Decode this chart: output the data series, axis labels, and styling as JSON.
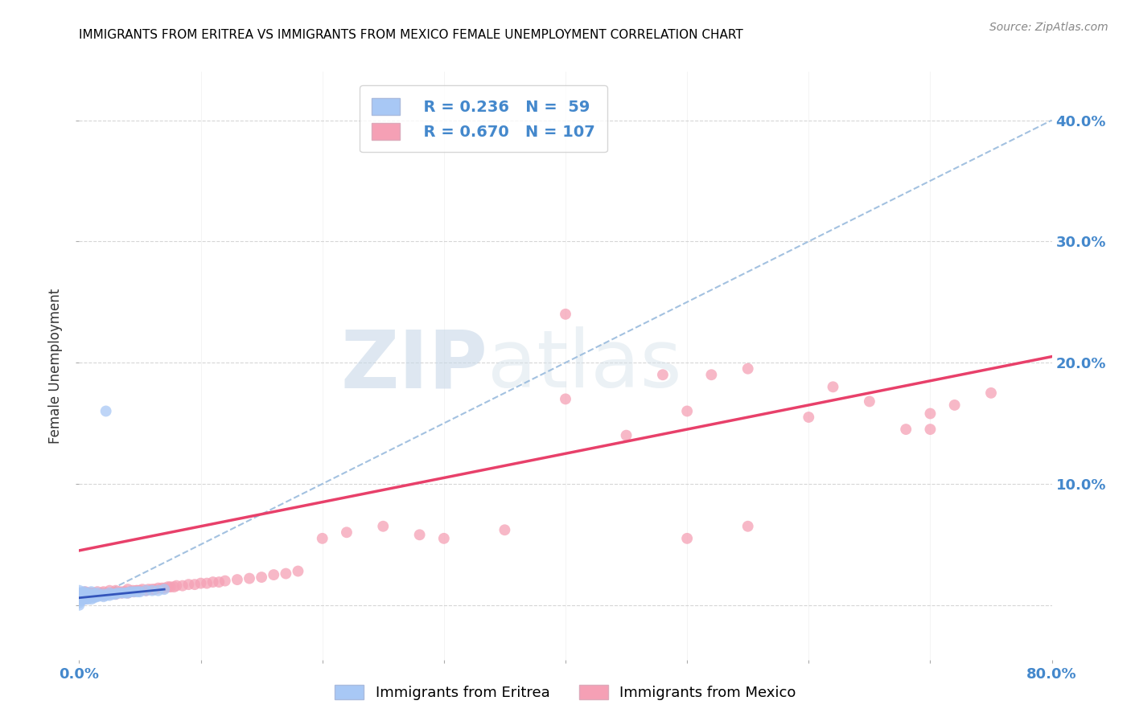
{
  "title": "IMMIGRANTS FROM ERITREA VS IMMIGRANTS FROM MEXICO FEMALE UNEMPLOYMENT CORRELATION CHART",
  "source": "Source: ZipAtlas.com",
  "ylabel": "Female Unemployment",
  "xlim": [
    0.0,
    0.8
  ],
  "ylim": [
    -0.045,
    0.44
  ],
  "watermark_zip": "ZIP",
  "watermark_atlas": "atlas",
  "legend_eritrea_R": "0.236",
  "legend_eritrea_N": "59",
  "legend_mexico_R": "0.670",
  "legend_mexico_N": "107",
  "eritrea_color": "#a8c8f5",
  "mexico_color": "#f5a0b5",
  "eritrea_line_color": "#3355bb",
  "mexico_line_color": "#e8406a",
  "dashed_line_color": "#99bbdd",
  "title_fontsize": 11,
  "axis_label_color": "#4488cc",
  "grid_color": "#cccccc",
  "eritrea_x": [
    0.0,
    0.0,
    0.0,
    0.0,
    0.0,
    0.0,
    0.0,
    0.0,
    0.001,
    0.001,
    0.001,
    0.002,
    0.002,
    0.003,
    0.003,
    0.003,
    0.004,
    0.004,
    0.004,
    0.005,
    0.005,
    0.005,
    0.006,
    0.007,
    0.007,
    0.008,
    0.008,
    0.009,
    0.01,
    0.01,
    0.01,
    0.011,
    0.012,
    0.013,
    0.013,
    0.015,
    0.015,
    0.016,
    0.018,
    0.02,
    0.02,
    0.022,
    0.025,
    0.025,
    0.028,
    0.03,
    0.032,
    0.035,
    0.038,
    0.04,
    0.042,
    0.045,
    0.048,
    0.05,
    0.055,
    0.06,
    0.065,
    0.07,
    0.022
  ],
  "eritrea_y": [
    0.0,
    0.002,
    0.004,
    0.005,
    0.006,
    0.008,
    0.01,
    0.012,
    0.005,
    0.007,
    0.01,
    0.004,
    0.006,
    0.005,
    0.007,
    0.01,
    0.005,
    0.007,
    0.011,
    0.005,
    0.007,
    0.01,
    0.006,
    0.005,
    0.008,
    0.006,
    0.009,
    0.007,
    0.005,
    0.008,
    0.011,
    0.007,
    0.006,
    0.007,
    0.009,
    0.007,
    0.01,
    0.008,
    0.008,
    0.007,
    0.009,
    0.008,
    0.008,
    0.01,
    0.009,
    0.009,
    0.01,
    0.01,
    0.01,
    0.01,
    0.011,
    0.011,
    0.011,
    0.011,
    0.012,
    0.012,
    0.012,
    0.013,
    0.16
  ],
  "mexico_x": [
    0.0,
    0.0,
    0.001,
    0.001,
    0.002,
    0.002,
    0.003,
    0.003,
    0.004,
    0.004,
    0.005,
    0.005,
    0.005,
    0.006,
    0.006,
    0.007,
    0.007,
    0.008,
    0.008,
    0.009,
    0.009,
    0.01,
    0.01,
    0.011,
    0.012,
    0.012,
    0.013,
    0.014,
    0.015,
    0.015,
    0.016,
    0.017,
    0.018,
    0.019,
    0.02,
    0.02,
    0.021,
    0.022,
    0.023,
    0.025,
    0.025,
    0.027,
    0.028,
    0.03,
    0.03,
    0.032,
    0.033,
    0.035,
    0.036,
    0.038,
    0.04,
    0.04,
    0.042,
    0.044,
    0.045,
    0.047,
    0.048,
    0.05,
    0.052,
    0.055,
    0.057,
    0.06,
    0.062,
    0.065,
    0.068,
    0.07,
    0.073,
    0.075,
    0.078,
    0.08,
    0.085,
    0.09,
    0.095,
    0.1,
    0.105,
    0.11,
    0.115,
    0.12,
    0.13,
    0.14,
    0.15,
    0.16,
    0.17,
    0.18,
    0.2,
    0.22,
    0.25,
    0.28,
    0.3,
    0.35,
    0.4,
    0.45,
    0.5,
    0.55,
    0.6,
    0.65,
    0.7,
    0.72,
    0.75,
    0.5,
    0.55,
    0.4,
    0.48,
    0.52,
    0.62,
    0.68,
    0.7
  ],
  "mexico_y": [
    0.005,
    0.008,
    0.005,
    0.008,
    0.006,
    0.009,
    0.006,
    0.009,
    0.007,
    0.01,
    0.005,
    0.008,
    0.011,
    0.007,
    0.01,
    0.007,
    0.01,
    0.007,
    0.01,
    0.007,
    0.01,
    0.007,
    0.01,
    0.008,
    0.007,
    0.01,
    0.008,
    0.009,
    0.008,
    0.011,
    0.009,
    0.009,
    0.009,
    0.01,
    0.008,
    0.011,
    0.009,
    0.009,
    0.01,
    0.009,
    0.012,
    0.01,
    0.01,
    0.009,
    0.012,
    0.01,
    0.011,
    0.01,
    0.011,
    0.011,
    0.01,
    0.013,
    0.011,
    0.012,
    0.011,
    0.012,
    0.012,
    0.012,
    0.013,
    0.012,
    0.013,
    0.013,
    0.013,
    0.014,
    0.014,
    0.014,
    0.015,
    0.015,
    0.015,
    0.016,
    0.016,
    0.017,
    0.017,
    0.018,
    0.018,
    0.019,
    0.019,
    0.02,
    0.021,
    0.022,
    0.023,
    0.025,
    0.026,
    0.028,
    0.055,
    0.06,
    0.065,
    0.058,
    0.055,
    0.062,
    0.17,
    0.14,
    0.16,
    0.195,
    0.155,
    0.168,
    0.158,
    0.165,
    0.175,
    0.055,
    0.065,
    0.24,
    0.19,
    0.19,
    0.18,
    0.145,
    0.145
  ],
  "eritrea_line_x": [
    0.0,
    0.07
  ],
  "eritrea_line_y": [
    0.006,
    0.013
  ],
  "mexico_line_x": [
    0.0,
    0.8
  ],
  "mexico_line_y": [
    0.045,
    0.205
  ],
  "dashed_line_x": [
    0.0,
    0.8
  ],
  "dashed_line_y": [
    0.0,
    0.4
  ]
}
